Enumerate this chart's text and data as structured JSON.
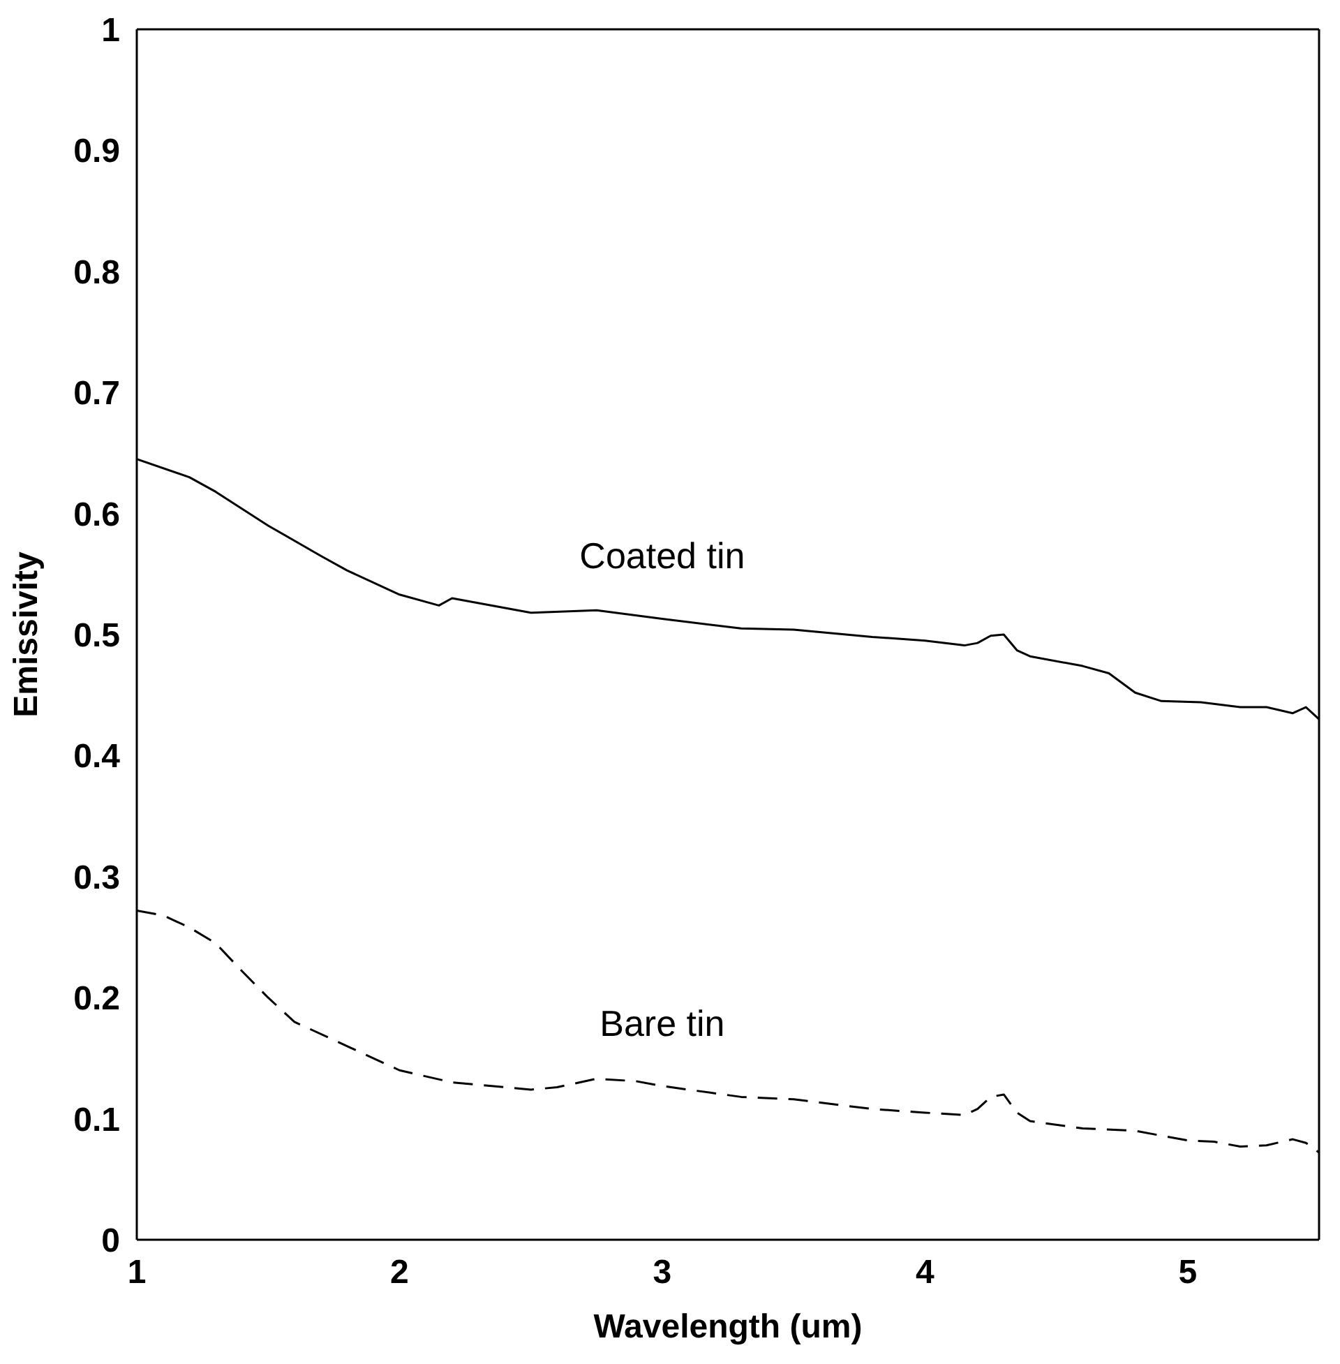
{
  "chart_data": {
    "type": "line",
    "xlabel": "Wavelength (um)",
    "ylabel": "Emissivity",
    "xlim": [
      1,
      5.5
    ],
    "xticks": [
      1,
      2,
      3,
      4,
      5
    ],
    "ylim": [
      0,
      1
    ],
    "yticks": [
      0,
      0.1,
      0.2,
      0.3,
      0.4,
      0.5,
      0.6,
      0.7,
      0.8,
      0.9,
      1
    ],
    "legend": false,
    "marker": "none",
    "series": [
      {
        "name": "Coated tin",
        "color": "#000000",
        "line_style": "solid",
        "x": [
          1,
          1.2,
          1.3,
          1.5,
          1.7,
          1.8,
          2,
          2.15,
          2.2,
          2.5,
          2.75,
          3,
          3.3,
          3.5,
          3.8,
          4,
          4.15,
          4.2,
          4.25,
          4.3,
          4.35,
          4.4,
          4.6,
          4.7,
          4.8,
          4.9,
          5.05,
          5.2,
          5.3,
          5.4,
          5.45,
          5.5
        ],
        "values": [
          0.645,
          0.63,
          0.618,
          0.59,
          0.565,
          0.553,
          0.533,
          0.524,
          0.53,
          0.518,
          0.52,
          0.513,
          0.505,
          0.504,
          0.498,
          0.495,
          0.491,
          0.493,
          0.499,
          0.5,
          0.487,
          0.482,
          0.474,
          0.468,
          0.452,
          0.445,
          0.444,
          0.44,
          0.44,
          0.435,
          0.44,
          0.43
        ]
      },
      {
        "name": "Bare tin",
        "color": "#000000",
        "line_style": "dashed",
        "x": [
          1,
          1.1,
          1.2,
          1.3,
          1.4,
          1.5,
          1.6,
          1.8,
          2,
          2.2,
          2.5,
          2.6,
          2.75,
          2.9,
          3,
          3.3,
          3.5,
          3.8,
          4,
          4.15,
          4.2,
          4.25,
          4.3,
          4.35,
          4.4,
          4.6,
          4.8,
          5,
          5.1,
          5.2,
          5.3,
          5.4,
          5.45,
          5.5
        ],
        "values": [
          0.272,
          0.268,
          0.258,
          0.245,
          0.222,
          0.2,
          0.18,
          0.16,
          0.14,
          0.13,
          0.124,
          0.126,
          0.133,
          0.131,
          0.127,
          0.118,
          0.116,
          0.108,
          0.105,
          0.103,
          0.108,
          0.118,
          0.12,
          0.105,
          0.098,
          0.092,
          0.09,
          0.082,
          0.081,
          0.077,
          0.078,
          0.083,
          0.08,
          0.072
        ]
      }
    ]
  }
}
